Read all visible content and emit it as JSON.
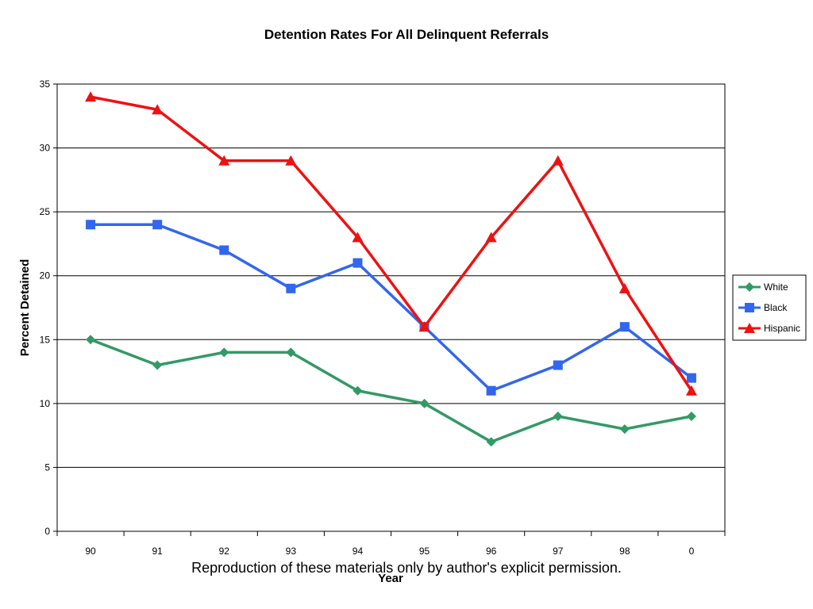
{
  "footer_note": "Reproduction of these materials only by author's explicit permission.",
  "chart_data": {
    "type": "line",
    "title": "Detention Rates For All Delinquent Referrals",
    "xlabel": "Year",
    "ylabel": "Percent Detained",
    "categories": [
      "90",
      "91",
      "92",
      "93",
      "94",
      "95",
      "96",
      "97",
      "98",
      "0"
    ],
    "ylim": [
      0,
      35
    ],
    "yticks": [
      0,
      5,
      10,
      15,
      20,
      25,
      30,
      35
    ],
    "grid": true,
    "legend_position": "right",
    "series": [
      {
        "name": "White",
        "values": [
          15,
          13,
          14,
          14,
          11,
          10,
          7,
          9,
          8,
          9
        ],
        "color": "#339966",
        "marker": "diamond"
      },
      {
        "name": "Black",
        "values": [
          24,
          24,
          22,
          19,
          21,
          16,
          11,
          13,
          16,
          12
        ],
        "color": "#3366ee",
        "marker": "square"
      },
      {
        "name": "Hispanic",
        "values": [
          34,
          33,
          29,
          29,
          23,
          16,
          23,
          29,
          19,
          11
        ],
        "color": "#ee1111",
        "marker": "triangle"
      }
    ]
  }
}
